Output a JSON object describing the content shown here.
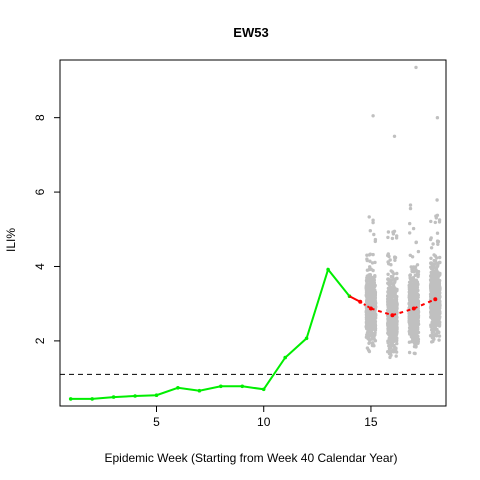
{
  "chart_data": {
    "type": "line",
    "title": "EW53",
    "xlabel": "Epidemic Week (Starting from Week 40 Calendar Year)",
    "ylabel": "ILI%",
    "xlim": [
      0.5,
      18.5
    ],
    "ylim": [
      0.25,
      9.55
    ],
    "x_ticks": [
      5,
      10,
      15
    ],
    "y_ticks": [
      2,
      4,
      6,
      8
    ],
    "grid": false,
    "baseline": 1.1,
    "observed": {
      "color": "#00ee00",
      "x": [
        1,
        2,
        3,
        4,
        5,
        6,
        7,
        8,
        9,
        10,
        11,
        12,
        13,
        14
      ],
      "y": [
        0.44,
        0.44,
        0.49,
        0.52,
        0.54,
        0.74,
        0.66,
        0.78,
        0.78,
        0.7,
        1.55,
        2.07,
        3.92,
        3.2
      ]
    },
    "forecast_bridge": {
      "color": "#ff0000",
      "x": [
        14,
        14.5
      ],
      "y": [
        3.2,
        3.05
      ]
    },
    "forecast": {
      "color": "#ff0000",
      "x": [
        14.5,
        15,
        16,
        17,
        18
      ],
      "y": [
        3.05,
        2.87,
        2.69,
        2.87,
        3.12
      ]
    },
    "simulations": {
      "color": "#c0c0c0",
      "weeks": [
        15,
        16,
        17,
        18
      ],
      "centers": [
        2.87,
        2.69,
        2.87,
        3.12
      ],
      "mins": [
        1.1,
        1.05,
        0.95,
        0.8
      ],
      "maxs": [
        8.05,
        7.5,
        9.35,
        8.0
      ]
    }
  }
}
